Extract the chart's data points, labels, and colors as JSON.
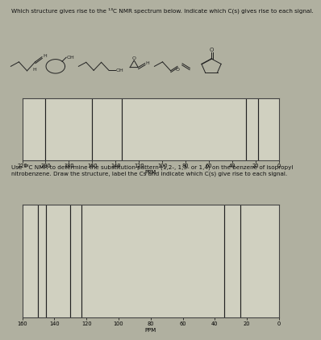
{
  "title1": "Which structure gives rise to the ¹³C NMR spectrum below. Indicate which C(s) gives rise to each signal.",
  "title2": "Use ¹³C NMR to determine the substitution pattern (1,2-, 1,3- or 1,4) on the benzene of isopropyl\nnitrobenzene. Draw the structure, label the Cs and indicate which C(s) give rise to each signal.",
  "spectrum1": {
    "xmin": 0,
    "xmax": 220,
    "peaks": [
      200,
      160,
      135,
      28,
      18
    ],
    "xticks": [
      220,
      200,
      180,
      160,
      140,
      120,
      100,
      80,
      60,
      40,
      20,
      0
    ],
    "xlabel": "PPM"
  },
  "spectrum2": {
    "xmin": 0,
    "xmax": 160,
    "peaks": [
      150,
      145,
      130,
      123,
      34,
      24
    ],
    "xticks": [
      160,
      140,
      120,
      100,
      80,
      60,
      40,
      20,
      0
    ],
    "xlabel": "PPM"
  },
  "bg_color": "#b0b0a0",
  "plot_bg": "#d0d0c0",
  "peak_color": "#222222",
  "border_color": "#444444",
  "text_color": "#111111",
  "title_fontsize": 5.2,
  "axis_fontsize": 5.0,
  "tick_fontsize": 4.8,
  "struct_color": "#222222"
}
